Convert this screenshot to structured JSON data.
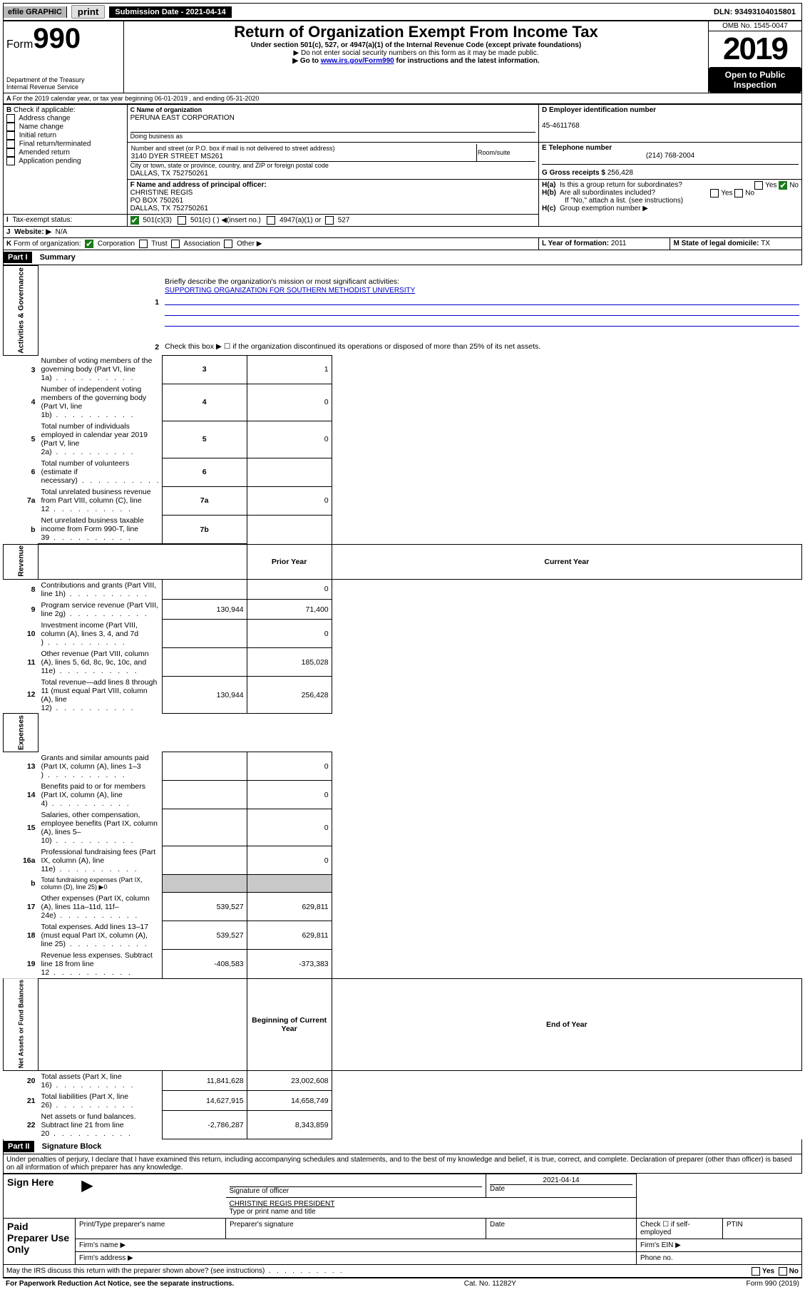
{
  "topbar": {
    "efile": "efile GRAPHIC",
    "print": "print",
    "subdate_label": "Submission Date - 2021-04-14",
    "dln": "DLN: 93493104015801"
  },
  "header": {
    "form_label": "Form",
    "form_no": "990",
    "dept": "Department of the Treasury\nInternal Revenue Service",
    "title": "Return of Organization Exempt From Income Tax",
    "subtitle": "Under section 501(c), 527, or 4947(a)(1) of the Internal Revenue Code (except private foundations)",
    "note1": "▶ Do not enter social security numbers on this form as it may be made public.",
    "note2_pre": "▶ Go to ",
    "note2_link": "www.irs.gov/Form990",
    "note2_post": " for instructions and the latest information.",
    "omb": "OMB No. 1545-0047",
    "year": "2019",
    "open": "Open to Public Inspection"
  },
  "periodA": "For the 2019 calendar year, or tax year beginning 06-01-2019    , and ending 05-31-2020",
  "B": {
    "label": "Check if applicable:",
    "items": [
      "Address change",
      "Name change",
      "Initial return",
      "Final return/terminated",
      "Amended return",
      "Application pending"
    ]
  },
  "C": {
    "name_label": "C Name of organization",
    "name": "PERUNA EAST CORPORATION",
    "dba_label": "Doing business as",
    "addr_label": "Number and street (or P.O. box if mail is not delivered to street address)",
    "room_label": "Room/suite",
    "addr": "3140 DYER STREET MS261",
    "city_label": "City or town, state or province, country, and ZIP or foreign postal code",
    "city": "DALLAS, TX  752750261"
  },
  "D": {
    "label": "D Employer identification number",
    "value": "45-4611768"
  },
  "E": {
    "label": "E Telephone number",
    "value": "(214) 768-2004"
  },
  "G": {
    "label": "G Gross receipts $",
    "value": "256,428"
  },
  "F": {
    "label": "F  Name and address of principal officer:",
    "name": "CHRISTINE REGIS",
    "addr1": "PO BOX 750261",
    "addr2": "DALLAS, TX  752750261"
  },
  "H": {
    "a": "Is this a group return for subordinates?",
    "b": "Are all subordinates included?",
    "b_note": "If \"No,\" attach a list. (see instructions)",
    "c": "Group exemption number ▶",
    "yes": "Yes",
    "no": "No"
  },
  "I": {
    "label": "Tax-exempt status:",
    "c3": "501(c)(3)",
    "c": "501(c) (  ) ◀(insert no.)",
    "a1": "4947(a)(1) or",
    "527": "527"
  },
  "J": {
    "label": "Website: ▶",
    "value": "N/A"
  },
  "K": {
    "label": "Form of organization:",
    "corp": "Corporation",
    "trust": "Trust",
    "assoc": "Association",
    "other": "Other ▶"
  },
  "L": {
    "label": "L Year of formation:",
    "value": "2011"
  },
  "M": {
    "label": "M State of legal domicile:",
    "value": "TX"
  },
  "partI": {
    "hdr": "Part I",
    "title": "Summary",
    "l1_label": "Briefly describe the organization's mission or most significant activities:",
    "l1_text": "SUPPORTING ORGANIZATION FOR SOUTHERN METHODIST UNIVERSITY",
    "l2": "Check this box ▶ ☐  if the organization discontinued its operations or disposed of more than 25% of its net assets.",
    "governance_label": "Activities & Governance",
    "revenue_label": "Revenue",
    "expenses_label": "Expenses",
    "netassets_label": "Net Assets or Fund Balances",
    "col_prior": "Prior Year",
    "col_current": "Current Year",
    "col_begin": "Beginning of Current Year",
    "col_end": "End of Year",
    "gov_lines": [
      {
        "n": "3",
        "t": "Number of voting members of the governing body (Part VI, line 1a)",
        "box": "3",
        "v": "1"
      },
      {
        "n": "4",
        "t": "Number of independent voting members of the governing body (Part VI, line 1b)",
        "box": "4",
        "v": "0"
      },
      {
        "n": "5",
        "t": "Total number of individuals employed in calendar year 2019 (Part V, line 2a)",
        "box": "5",
        "v": "0"
      },
      {
        "n": "6",
        "t": "Total number of volunteers (estimate if necessary)",
        "box": "6",
        "v": ""
      },
      {
        "n": "7a",
        "t": "Total unrelated business revenue from Part VIII, column (C), line 12",
        "box": "7a",
        "v": "0"
      },
      {
        "n": "b",
        "t": "Net unrelated business taxable income from Form 990-T, line 39",
        "box": "7b",
        "v": ""
      }
    ],
    "rev_lines": [
      {
        "n": "8",
        "t": "Contributions and grants (Part VIII, line 1h)",
        "p": "",
        "c": "0"
      },
      {
        "n": "9",
        "t": "Program service revenue (Part VIII, line 2g)",
        "p": "130,944",
        "c": "71,400"
      },
      {
        "n": "10",
        "t": "Investment income (Part VIII, column (A), lines 3, 4, and 7d )",
        "p": "",
        "c": "0"
      },
      {
        "n": "11",
        "t": "Other revenue (Part VIII, column (A), lines 5, 6d, 8c, 9c, 10c, and 11e)",
        "p": "",
        "c": "185,028"
      },
      {
        "n": "12",
        "t": "Total revenue—add lines 8 through 11 (must equal Part VIII, column (A), line 12)",
        "p": "130,944",
        "c": "256,428"
      }
    ],
    "exp_lines": [
      {
        "n": "13",
        "t": "Grants and similar amounts paid (Part IX, column (A), lines 1–3 )",
        "p": "",
        "c": "0"
      },
      {
        "n": "14",
        "t": "Benefits paid to or for members (Part IX, column (A), line 4)",
        "p": "",
        "c": "0"
      },
      {
        "n": "15",
        "t": "Salaries, other compensation, employee benefits (Part IX, column (A), lines 5–10)",
        "p": "",
        "c": "0"
      },
      {
        "n": "16a",
        "t": "Professional fundraising fees (Part IX, column (A), line 11e)",
        "p": "",
        "c": "0"
      },
      {
        "n": "b",
        "t": "Total fundraising expenses (Part IX, column (D), line 25) ▶0",
        "shade": true
      },
      {
        "n": "17",
        "t": "Other expenses (Part IX, column (A), lines 11a–11d, 11f–24e)",
        "p": "539,527",
        "c": "629,811"
      },
      {
        "n": "18",
        "t": "Total expenses. Add lines 13–17 (must equal Part IX, column (A), line 25)",
        "p": "539,527",
        "c": "629,811"
      },
      {
        "n": "19",
        "t": "Revenue less expenses. Subtract line 18 from line 12",
        "p": "-408,583",
        "c": "-373,383"
      }
    ],
    "net_lines": [
      {
        "n": "20",
        "t": "Total assets (Part X, line 16)",
        "p": "11,841,628",
        "c": "23,002,608"
      },
      {
        "n": "21",
        "t": "Total liabilities (Part X, line 26)",
        "p": "14,627,915",
        "c": "14,658,749"
      },
      {
        "n": "22",
        "t": "Net assets or fund balances. Subtract line 21 from line 20",
        "p": "-2,786,287",
        "c": "8,343,859"
      }
    ]
  },
  "partII": {
    "hdr": "Part II",
    "title": "Signature Block",
    "perjury": "Under penalties of perjury, I declare that I have examined this return, including accompanying schedules and statements, and to the best of my knowledge and belief, it is true, correct, and complete. Declaration of preparer (other than officer) is based on all information of which preparer has any knowledge.",
    "sign_here": "Sign Here",
    "sig_officer": "Signature of officer",
    "date": "Date",
    "date_val": "2021-04-14",
    "name_title": "CHRISTINE REGIS  PRESIDENT",
    "type_name": "Type or print name and title",
    "paid": "Paid Preparer Use Only",
    "p_name": "Print/Type preparer's name",
    "p_sig": "Preparer's signature",
    "p_date": "Date",
    "p_check": "Check ☐ if self-employed",
    "ptin": "PTIN",
    "firm_name": "Firm's name  ▶",
    "firm_ein": "Firm's EIN ▶",
    "firm_addr": "Firm's address ▶",
    "phone": "Phone no.",
    "discuss": "May the IRS discuss this return with the preparer shown above? (see instructions)"
  },
  "footer": {
    "pra": "For Paperwork Reduction Act Notice, see the separate instructions.",
    "cat": "Cat. No. 11282Y",
    "form": "Form 990 (2019)"
  }
}
